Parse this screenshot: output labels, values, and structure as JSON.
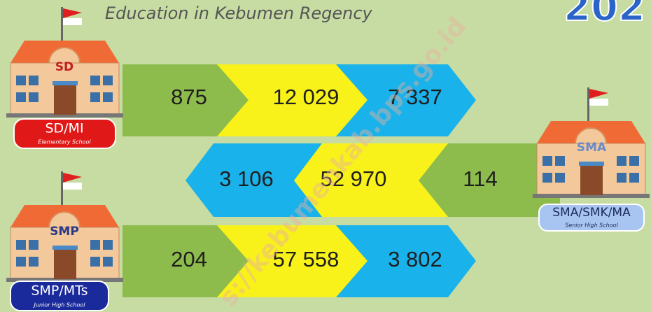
{
  "header": {
    "title": "Education in Kebumen Regency",
    "year_partial": "202"
  },
  "watermark": "s://kebumenkab.bps.go.id",
  "rows": [
    {
      "building": "SD",
      "label": "SD/MI",
      "sublabel": "Elementary School",
      "values": [
        "875",
        "12 029",
        "7 337"
      ]
    },
    {
      "building": "SMA",
      "label": "SMA/SMK/MA",
      "sublabel": "Senior High School",
      "values": [
        "3 106",
        "52 970",
        "114"
      ]
    },
    {
      "building": "SMP",
      "label": "SMP/MTs",
      "sublabel": "Junior High School",
      "values": [
        "204",
        "57 558",
        "3 802"
      ]
    }
  ]
}
